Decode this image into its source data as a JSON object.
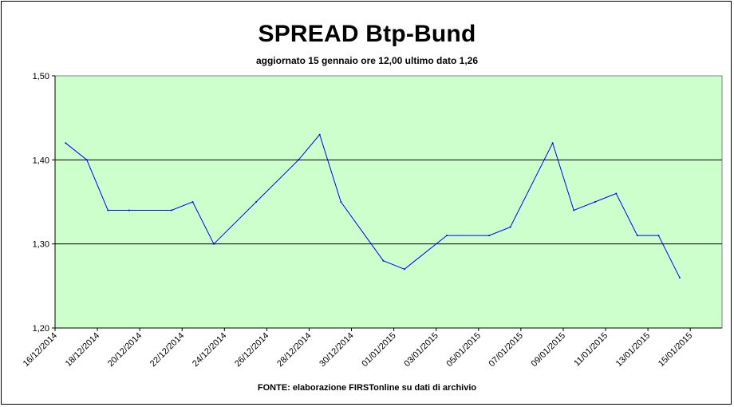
{
  "chart_data": {
    "type": "line",
    "title": "SPREAD Btp-Bund",
    "subtitle": "aggiornato 15 gennaio ore 12,00  ultimo dato  1,26",
    "source": "FONTE: elaborazione FIRSTonline su dati di archivio",
    "xlabel": "",
    "ylabel": "",
    "ylim": [
      1.2,
      1.5
    ],
    "yticks": [
      "1,20",
      "1,30",
      "1,40",
      "1,50"
    ],
    "ytick_values": [
      1.2,
      1.3,
      1.4,
      1.5
    ],
    "xticks": [
      "16/12/2014",
      "18/12/2014",
      "20/12/2014",
      "22/12/2014",
      "24/12/2014",
      "26/12/2014",
      "28/12/2014",
      "30/12/2014",
      "01/01/2015",
      "03/01/2015",
      "05/01/2015",
      "07/01/2015",
      "09/01/2015",
      "11/01/2015",
      "13/01/2015",
      "15/01/2015"
    ],
    "xtick_positions": [
      0,
      2,
      4,
      6,
      8,
      10,
      12,
      14,
      16,
      18,
      20,
      22,
      24,
      26,
      28,
      30
    ],
    "grid": "horizontal",
    "plot_background": "#ccffcc",
    "line_color": "#0000ff",
    "series": [
      {
        "x": [
          0.5,
          1.5,
          2.5,
          3.5,
          5.5,
          6.5,
          7.5,
          9.5,
          11.5,
          12.5,
          13.5,
          15.5,
          16.5,
          18.5,
          20.5,
          21.5,
          23.5,
          24.5,
          25.5,
          26.5,
          27.5,
          28.5,
          29.5
        ],
        "values": [
          1.42,
          1.4,
          1.34,
          1.34,
          1.34,
          1.35,
          1.3,
          1.35,
          1.4,
          1.43,
          1.35,
          1.28,
          1.27,
          1.31,
          1.31,
          1.32,
          1.42,
          1.34,
          1.35,
          1.36,
          1.31,
          1.31,
          1.26
        ]
      }
    ]
  }
}
